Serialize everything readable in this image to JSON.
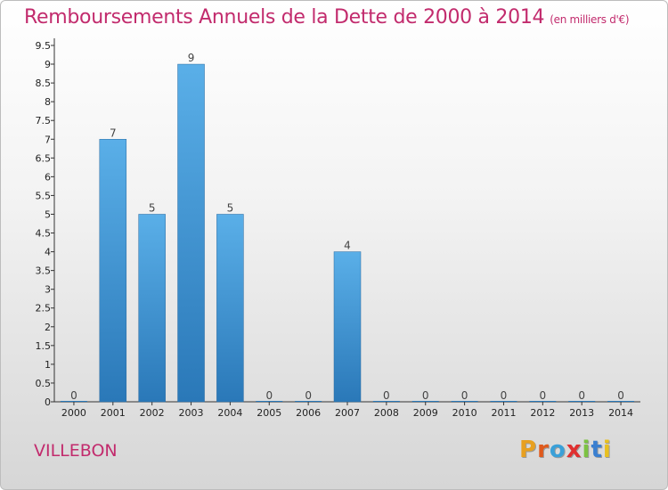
{
  "header": {
    "title": "Remboursements Annuels de la Dette de 2000 à 2014",
    "subtitle": "(en milliers d'€)"
  },
  "footer": {
    "town": "VILLEBON",
    "logo_text": "Proxiti",
    "logo_colors": [
      "#e8a020",
      "#e05a1c",
      "#3aa0d8",
      "#e03030",
      "#7cc242",
      "#3a7fd0",
      "#e8c020"
    ]
  },
  "chart_data": {
    "type": "bar",
    "title": "Remboursements Annuels de la Dette de 2000 à 2014",
    "subtitle": "(en milliers d'€)",
    "xlabel": "",
    "ylabel": "",
    "categories": [
      "2000",
      "2001",
      "2002",
      "2003",
      "2004",
      "2005",
      "2006",
      "2007",
      "2008",
      "2009",
      "2010",
      "2011",
      "2012",
      "2013",
      "2014"
    ],
    "values": [
      0,
      7,
      5,
      9,
      5,
      0,
      0,
      4,
      0,
      0,
      0,
      0,
      0,
      0,
      0
    ],
    "data_labels": [
      "0",
      "7",
      "5",
      "9",
      "5",
      "0",
      "0",
      "4",
      "0",
      "0",
      "0",
      "0",
      "0",
      "0",
      "0"
    ],
    "yticks": [
      "0",
      "0.5",
      "1",
      "1.5",
      "2",
      "2.5",
      "3",
      "3.5",
      "4",
      "4.5",
      "5",
      "5.5",
      "6",
      "6.5",
      "7",
      "7.5",
      "8",
      "8.5",
      "9",
      "9.5"
    ],
    "ylim": [
      0,
      9.5
    ],
    "grid": false,
    "legend": "none",
    "bar_color_top": "#5aafe8",
    "bar_color_bottom": "#2a78b8"
  }
}
